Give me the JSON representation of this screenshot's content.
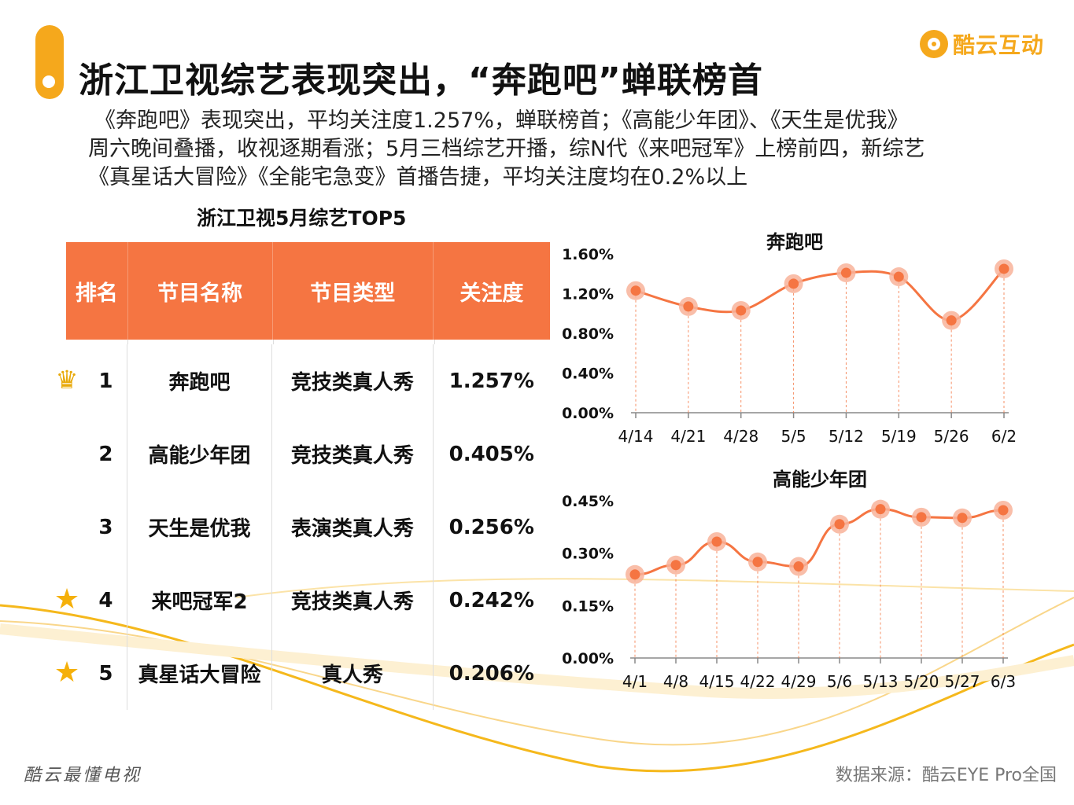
{
  "header": {
    "title": "浙江卫视综艺表现突出，“奔跑吧”蝉联榜首",
    "brand": "酷云互动",
    "description": [
      "《奔跑吧》表现突出，平均关注度1.257%，蝉联榜首；《高能少年团》、《天生是优我》",
      "周六晚间叠播，收视逐期看涨；5月三档综艺开播，综N代《来吧冠军》上榜前四，新综艺",
      "《真星话大冒险》《全能宅急变》首播告捷，平均关注度均在0.2%以上"
    ]
  },
  "table": {
    "title": "浙江卫视5月综艺TOP5",
    "headers": [
      "排名",
      "节目名称",
      "节目类型",
      "关注度"
    ],
    "rows": [
      {
        "rank": "1",
        "name": "奔跑吧",
        "type": "竞技类真人秀",
        "value": "1.257%",
        "icon": "crown-icon"
      },
      {
        "rank": "2",
        "name": "高能少年团",
        "type": "竞技类真人秀",
        "value": "0.405%",
        "icon": ""
      },
      {
        "rank": "3",
        "name": "天生是优我",
        "type": "表演类真人秀",
        "value": "0.256%",
        "icon": ""
      },
      {
        "rank": "4",
        "name": "来吧冠军2",
        "type": "竞技类真人秀",
        "value": "0.242%",
        "icon": "star-icon"
      },
      {
        "rank": "5",
        "name": "真星话大冒险",
        "type": "真人秀",
        "value": "0.206%",
        "icon": "star-icon"
      }
    ]
  },
  "chart_data": [
    {
      "type": "line",
      "title": "奔跑吧",
      "x": [
        "4/14",
        "4/21",
        "4/28",
        "5/5",
        "5/12",
        "5/19",
        "5/26",
        "6/2"
      ],
      "values": [
        1.23,
        1.07,
        1.03,
        1.3,
        1.41,
        1.37,
        0.93,
        1.45
      ],
      "ylim": [
        0,
        1.6
      ],
      "yticks": [
        "0.00%",
        "0.40%",
        "0.80%",
        "1.20%",
        "1.60%"
      ],
      "smooth": true,
      "color": "#f57542"
    },
    {
      "type": "line",
      "title": "高能少年团",
      "x": [
        "4/1",
        "4/8",
        "4/15",
        "4/22",
        "4/29",
        "5/6",
        "5/13",
        "5/20",
        "5/27",
        "6/3"
      ],
      "values": [
        0.239,
        0.266,
        0.333,
        0.275,
        0.262,
        0.383,
        0.426,
        0.403,
        0.401,
        0.423
      ],
      "ylim": [
        0,
        0.45
      ],
      "yticks": [
        "0.00%",
        "0.15%",
        "0.30%",
        "0.45%"
      ],
      "smooth": false,
      "color": "#f57542"
    }
  ],
  "footer": {
    "left": "酷云最懂电视",
    "right": "数据来源：酷云EYE Pro全国"
  },
  "colors": {
    "accent": "#f5a81c",
    "header_fill": "#f57542",
    "line": "#f57542",
    "point_halo": "#f8b39a"
  }
}
